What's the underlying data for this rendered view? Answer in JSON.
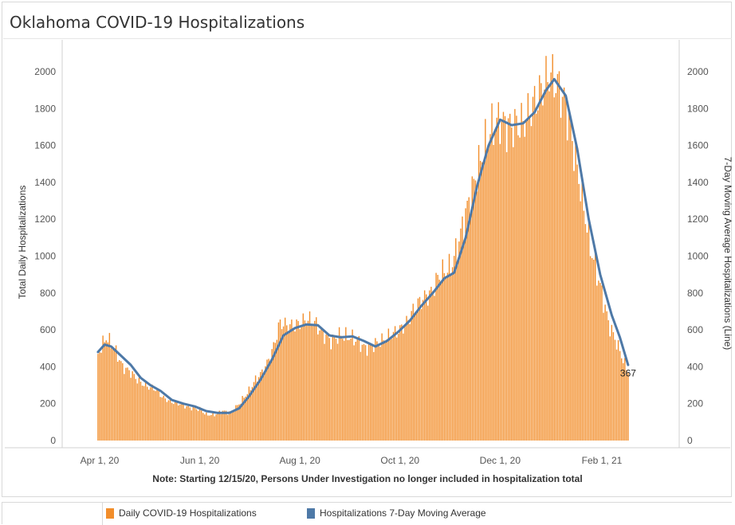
{
  "page": {
    "title": "Oklahoma COVID-19 Hospitalizations",
    "note": "Note: Starting 12/15/20, Persons Under Investigation no longer included in hospitalization total"
  },
  "legend": {
    "items": [
      {
        "label": "Daily COVID-19 Hospitalizations",
        "color": "#f28e2b"
      },
      {
        "label": "Hospitalizations 7-Day Moving Average",
        "color": "#4e79a7"
      }
    ]
  },
  "chart_data": {
    "type": "bar",
    "title": "Oklahoma COVID-19 Hospitalizations",
    "ylabel": "Total Daily Hospitalizations",
    "ylabel_right": "7-Day Moving Average Hospitalizations (Line)",
    "ylim": [
      0,
      2150
    ],
    "y_ticks": [
      0,
      200,
      400,
      600,
      800,
      1000,
      1200,
      1400,
      1600,
      1800,
      2000
    ],
    "x_ticks": [
      "Apr 1, 20",
      "Jun 1, 20",
      "Aug 1, 20",
      "Oct 1, 20",
      "Dec 1, 20",
      "Feb 1, 21"
    ],
    "x_start": "2020-03-31",
    "x_end": "2021-02-17",
    "grid": false,
    "legend_position": "bottom",
    "annotation": {
      "text": "367",
      "date": "2021-02-17"
    },
    "series": [
      {
        "name": "Daily COVID-19 Hospitalizations",
        "type": "bar",
        "color": "#f28e2b",
        "points": [
          {
            "date": "2020-03-31",
            "value": 470
          },
          {
            "date": "2020-04-05",
            "value": 560
          },
          {
            "date": "2020-04-10",
            "value": 500
          },
          {
            "date": "2020-04-15",
            "value": 400
          },
          {
            "date": "2020-04-20",
            "value": 370
          },
          {
            "date": "2020-04-25",
            "value": 320
          },
          {
            "date": "2020-05-01",
            "value": 290
          },
          {
            "date": "2020-05-05",
            "value": 280
          },
          {
            "date": "2020-05-10",
            "value": 230
          },
          {
            "date": "2020-05-15",
            "value": 210
          },
          {
            "date": "2020-05-20",
            "value": 200
          },
          {
            "date": "2020-05-25",
            "value": 180
          },
          {
            "date": "2020-06-01",
            "value": 170
          },
          {
            "date": "2020-06-05",
            "value": 140
          },
          {
            "date": "2020-06-10",
            "value": 140
          },
          {
            "date": "2020-06-15",
            "value": 160
          },
          {
            "date": "2020-06-20",
            "value": 150
          },
          {
            "date": "2020-06-25",
            "value": 200
          },
          {
            "date": "2020-07-01",
            "value": 270
          },
          {
            "date": "2020-07-05",
            "value": 330
          },
          {
            "date": "2020-07-10",
            "value": 380
          },
          {
            "date": "2020-07-15",
            "value": 480
          },
          {
            "date": "2020-07-20",
            "value": 640
          },
          {
            "date": "2020-07-25",
            "value": 620
          },
          {
            "date": "2020-08-01",
            "value": 630
          },
          {
            "date": "2020-08-05",
            "value": 660
          },
          {
            "date": "2020-08-10",
            "value": 640
          },
          {
            "date": "2020-08-15",
            "value": 580
          },
          {
            "date": "2020-08-20",
            "value": 540
          },
          {
            "date": "2020-08-25",
            "value": 570
          },
          {
            "date": "2020-09-01",
            "value": 560
          },
          {
            "date": "2020-09-05",
            "value": 540
          },
          {
            "date": "2020-09-10",
            "value": 500
          },
          {
            "date": "2020-09-15",
            "value": 520
          },
          {
            "date": "2020-09-20",
            "value": 540
          },
          {
            "date": "2020-09-25",
            "value": 570
          },
          {
            "date": "2020-10-01",
            "value": 600
          },
          {
            "date": "2020-10-05",
            "value": 640
          },
          {
            "date": "2020-10-10",
            "value": 720
          },
          {
            "date": "2020-10-15",
            "value": 770
          },
          {
            "date": "2020-10-20",
            "value": 800
          },
          {
            "date": "2020-10-25",
            "value": 900
          },
          {
            "date": "2020-11-01",
            "value": 940
          },
          {
            "date": "2020-11-05",
            "value": 1050
          },
          {
            "date": "2020-11-10",
            "value": 1230
          },
          {
            "date": "2020-11-15",
            "value": 1390
          },
          {
            "date": "2020-11-20",
            "value": 1550
          },
          {
            "date": "2020-11-25",
            "value": 1680
          },
          {
            "date": "2020-12-01",
            "value": 1740
          },
          {
            "date": "2020-12-05",
            "value": 1700
          },
          {
            "date": "2020-12-10",
            "value": 1710
          },
          {
            "date": "2020-12-15",
            "value": 1720
          },
          {
            "date": "2020-12-20",
            "value": 1800
          },
          {
            "date": "2020-12-25",
            "value": 1880
          },
          {
            "date": "2020-12-31",
            "value": 1990
          },
          {
            "date": "2021-01-05",
            "value": 1930
          },
          {
            "date": "2021-01-10",
            "value": 1820
          },
          {
            "date": "2021-01-15",
            "value": 1580
          },
          {
            "date": "2021-01-20",
            "value": 1320
          },
          {
            "date": "2021-01-25",
            "value": 1050
          },
          {
            "date": "2021-02-01",
            "value": 800
          },
          {
            "date": "2021-02-05",
            "value": 640
          },
          {
            "date": "2021-02-10",
            "value": 530
          },
          {
            "date": "2021-02-17",
            "value": 367
          }
        ]
      },
      {
        "name": "Hospitalizations 7-Day Moving Average",
        "type": "line",
        "color": "#4e79a7",
        "points": [
          {
            "date": "2020-03-31",
            "value": 480
          },
          {
            "date": "2020-04-04",
            "value": 520
          },
          {
            "date": "2020-04-08",
            "value": 510
          },
          {
            "date": "2020-04-14",
            "value": 460
          },
          {
            "date": "2020-04-20",
            "value": 410
          },
          {
            "date": "2020-04-26",
            "value": 340
          },
          {
            "date": "2020-05-02",
            "value": 300
          },
          {
            "date": "2020-05-08",
            "value": 270
          },
          {
            "date": "2020-05-15",
            "value": 220
          },
          {
            "date": "2020-05-22",
            "value": 200
          },
          {
            "date": "2020-05-29",
            "value": 185
          },
          {
            "date": "2020-06-05",
            "value": 160
          },
          {
            "date": "2020-06-12",
            "value": 150
          },
          {
            "date": "2020-06-19",
            "value": 150
          },
          {
            "date": "2020-06-25",
            "value": 175
          },
          {
            "date": "2020-07-01",
            "value": 240
          },
          {
            "date": "2020-07-08",
            "value": 330
          },
          {
            "date": "2020-07-15",
            "value": 440
          },
          {
            "date": "2020-07-22",
            "value": 570
          },
          {
            "date": "2020-07-29",
            "value": 610
          },
          {
            "date": "2020-08-05",
            "value": 630
          },
          {
            "date": "2020-08-12",
            "value": 625
          },
          {
            "date": "2020-08-19",
            "value": 570
          },
          {
            "date": "2020-08-26",
            "value": 560
          },
          {
            "date": "2020-09-02",
            "value": 565
          },
          {
            "date": "2020-09-09",
            "value": 540
          },
          {
            "date": "2020-09-16",
            "value": 510
          },
          {
            "date": "2020-09-23",
            "value": 540
          },
          {
            "date": "2020-09-30",
            "value": 590
          },
          {
            "date": "2020-10-07",
            "value": 650
          },
          {
            "date": "2020-10-14",
            "value": 730
          },
          {
            "date": "2020-10-21",
            "value": 800
          },
          {
            "date": "2020-10-28",
            "value": 880
          },
          {
            "date": "2020-11-03",
            "value": 910
          },
          {
            "date": "2020-11-10",
            "value": 1100
          },
          {
            "date": "2020-11-17",
            "value": 1380
          },
          {
            "date": "2020-11-24",
            "value": 1600
          },
          {
            "date": "2020-12-01",
            "value": 1740
          },
          {
            "date": "2020-12-08",
            "value": 1710
          },
          {
            "date": "2020-12-15",
            "value": 1720
          },
          {
            "date": "2020-12-22",
            "value": 1780
          },
          {
            "date": "2020-12-29",
            "value": 1900
          },
          {
            "date": "2021-01-03",
            "value": 1960
          },
          {
            "date": "2021-01-10",
            "value": 1870
          },
          {
            "date": "2021-01-17",
            "value": 1580
          },
          {
            "date": "2021-01-24",
            "value": 1200
          },
          {
            "date": "2021-01-31",
            "value": 900
          },
          {
            "date": "2021-02-07",
            "value": 680
          },
          {
            "date": "2021-02-12",
            "value": 560
          },
          {
            "date": "2021-02-17",
            "value": 410
          }
        ]
      }
    ]
  }
}
